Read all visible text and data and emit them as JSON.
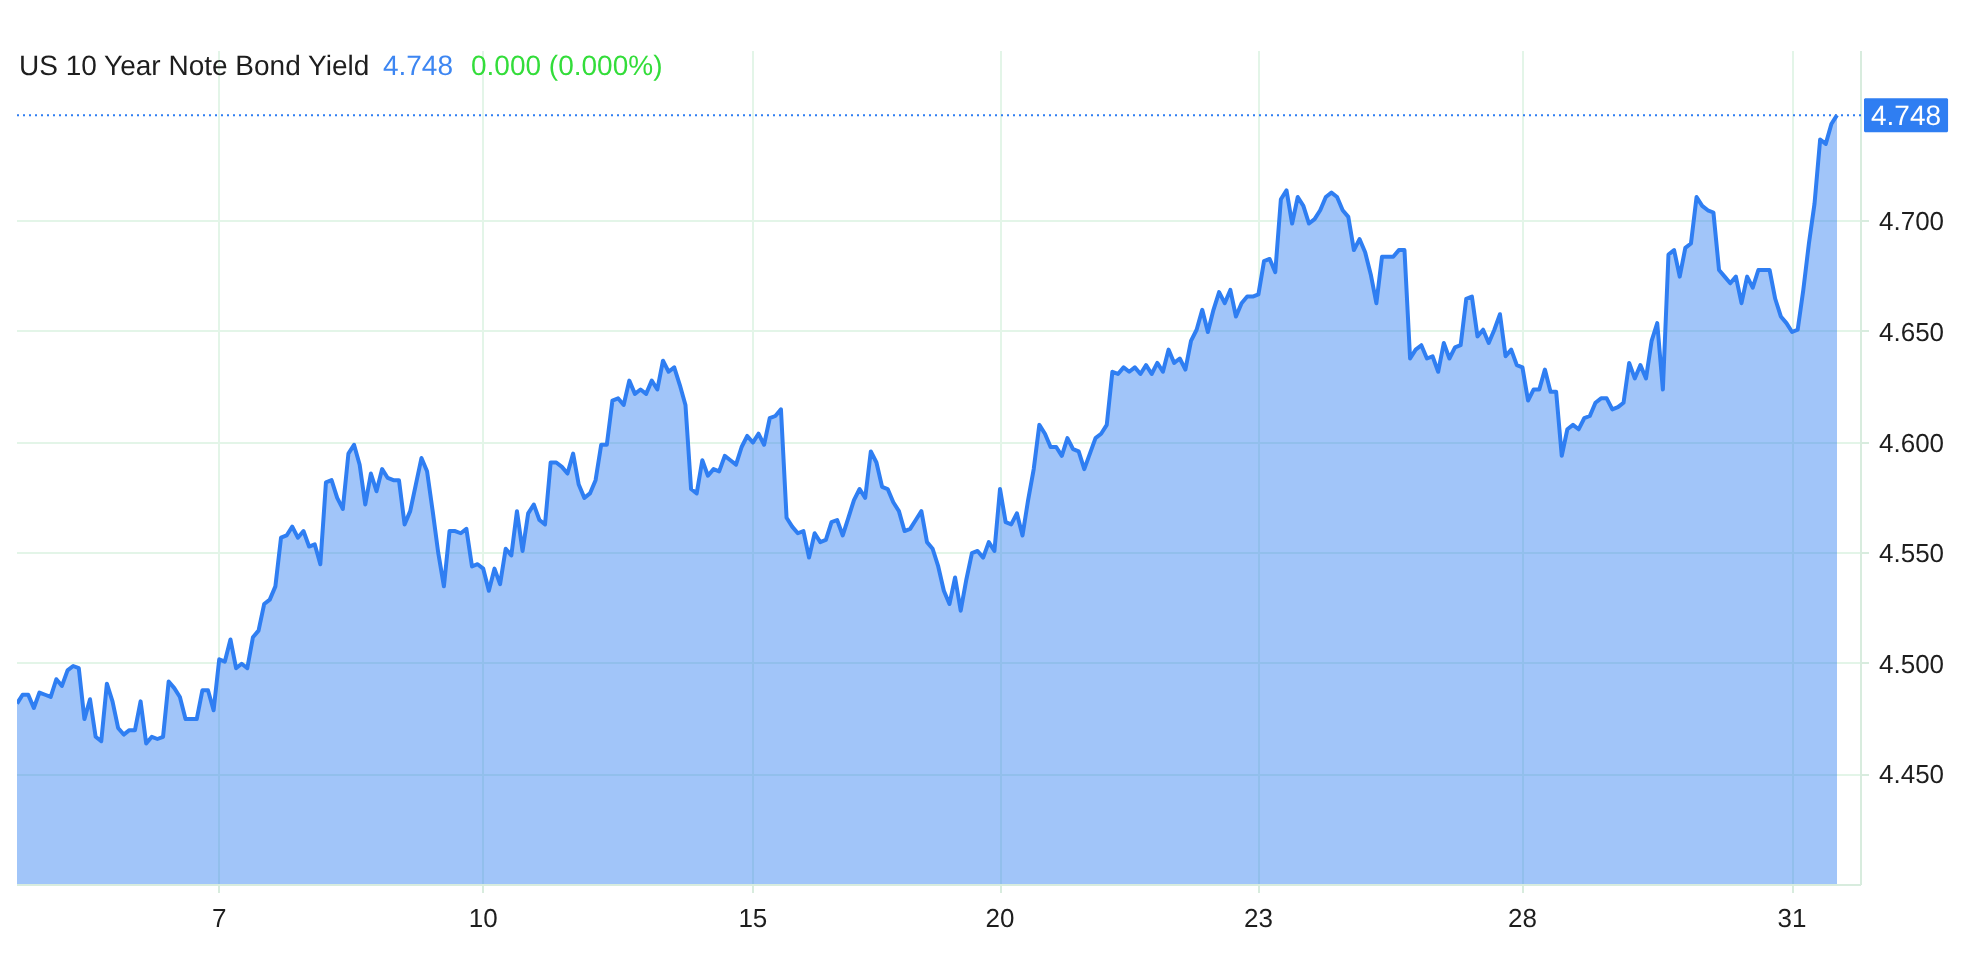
{
  "chart_data": {
    "type": "area",
    "title": "US 10 Year Note Bond Yield",
    "annotations": [
      "4.748",
      "0.000 (0.000%)"
    ],
    "ylim": [
      4.4,
      4.777
    ],
    "yticks": [
      {
        "value": 4.45,
        "label": "4.450"
      },
      {
        "value": 4.5,
        "label": "4.500"
      },
      {
        "value": 4.55,
        "label": "4.550"
      },
      {
        "value": 4.6,
        "label": "4.600"
      },
      {
        "value": 4.65,
        "label": "4.650"
      },
      {
        "value": 4.7,
        "label": "4.700"
      }
    ],
    "grid": true,
    "ref_lines": [
      {
        "axis": "y",
        "value": 4.748,
        "label": "4.748",
        "color": "#2f7ef2",
        "line_style": "dotted"
      }
    ],
    "categories": [
      null,
      null,
      null,
      null,
      null,
      null,
      null,
      null,
      null,
      null,
      null,
      null,
      null,
      null,
      null,
      null,
      null,
      null,
      null,
      null,
      null,
      null,
      null,
      null,
      null,
      null,
      null,
      null,
      null,
      null,
      null,
      null,
      null,
      null,
      null,
      null,
      "7",
      null,
      null,
      null,
      null,
      null,
      null,
      null,
      null,
      null,
      null,
      null,
      null,
      null,
      null,
      null,
      null,
      null,
      null,
      null,
      null,
      null,
      null,
      null,
      null,
      null,
      null,
      null,
      null,
      null,
      null,
      null,
      null,
      null,
      null,
      null,
      null,
      null,
      null,
      null,
      null,
      null,
      null,
      null,
      null,
      null,
      null,
      "10",
      null,
      null,
      null,
      null,
      null,
      null,
      null,
      null,
      null,
      null,
      null,
      null,
      null,
      null,
      null,
      null,
      null,
      null,
      null,
      null,
      null,
      null,
      null,
      null,
      null,
      null,
      null,
      null,
      null,
      null,
      null,
      null,
      null,
      null,
      null,
      null,
      null,
      null,
      null,
      null,
      null,
      null,
      null,
      null,
      null,
      null,
      null,
      "15",
      null,
      null,
      null,
      null,
      null,
      null,
      null,
      null,
      null,
      null,
      null,
      null,
      null,
      null,
      null,
      null,
      null,
      null,
      null,
      null,
      null,
      null,
      null,
      null,
      null,
      null,
      null,
      null,
      null,
      null,
      null,
      null,
      null,
      null,
      null,
      null,
      null,
      null,
      null,
      null,
      null,
      null,
      null,
      "20",
      null,
      null,
      null,
      null,
      null,
      null,
      null,
      null,
      null,
      null,
      null,
      null,
      null,
      null,
      null,
      null,
      null,
      null,
      null,
      null,
      null,
      null,
      null,
      null,
      null,
      null,
      null,
      null,
      null,
      null,
      null,
      null,
      null,
      null,
      null,
      null,
      null,
      null,
      null,
      null,
      null,
      null,
      null,
      null,
      null,
      "23",
      null,
      null,
      null,
      null,
      null,
      null,
      null,
      null,
      null,
      null,
      null,
      null,
      null,
      null,
      null,
      null,
      null,
      null,
      null,
      null,
      null,
      null,
      null,
      null,
      null,
      null,
      null,
      null,
      null,
      null,
      null,
      null,
      null,
      null,
      null,
      null,
      null,
      null,
      null,
      null,
      null,
      null,
      null,
      null,
      null,
      null,
      "28",
      null,
      null,
      null,
      null,
      null,
      null,
      null,
      null,
      null,
      null,
      null,
      null,
      null,
      null,
      null,
      null,
      null,
      null,
      null,
      null,
      null,
      null,
      null,
      null,
      null,
      null,
      null,
      null,
      null,
      null,
      null,
      null,
      null,
      null,
      null,
      null,
      null,
      null,
      null,
      null,
      null,
      null,
      null,
      null,
      null,
      null,
      null,
      "31",
      null,
      null,
      null,
      null,
      null,
      null,
      null,
      null
    ],
    "series": [
      {
        "color": "#2f7ef2",
        "values": [
          4.482,
          4.486,
          4.486,
          4.48,
          4.487,
          4.486,
          4.485,
          4.493,
          4.49,
          4.497,
          4.499,
          4.498,
          4.475,
          4.484,
          4.467,
          4.465,
          4.491,
          4.483,
          4.471,
          4.468,
          4.47,
          4.47,
          4.483,
          4.464,
          4.467,
          4.466,
          4.467,
          4.492,
          4.489,
          4.485,
          4.475,
          4.475,
          4.475,
          4.488,
          4.488,
          4.479,
          4.502,
          4.501,
          4.511,
          4.498,
          4.5,
          4.498,
          4.512,
          4.515,
          4.527,
          4.529,
          4.535,
          4.557,
          4.558,
          4.562,
          4.557,
          4.56,
          4.553,
          4.554,
          4.545,
          4.582,
          4.583,
          4.575,
          4.57,
          4.595,
          4.599,
          4.59,
          4.572,
          4.586,
          4.578,
          4.588,
          4.584,
          4.583,
          4.583,
          4.563,
          4.569,
          4.581,
          4.593,
          4.587,
          4.569,
          4.55,
          4.535,
          4.56,
          4.56,
          4.559,
          4.561,
          4.544,
          4.545,
          4.543,
          4.533,
          4.543,
          4.536,
          4.552,
          4.549,
          4.569,
          4.551,
          4.568,
          4.572,
          4.565,
          4.563,
          4.591,
          4.591,
          4.589,
          4.586,
          4.595,
          4.581,
          4.575,
          4.577,
          4.583,
          4.599,
          4.599,
          4.619,
          4.62,
          4.617,
          4.628,
          4.622,
          4.624,
          4.622,
          4.628,
          4.624,
          4.637,
          4.632,
          4.634,
          4.626,
          4.617,
          4.579,
          4.577,
          4.592,
          4.585,
          4.588,
          4.587,
          4.594,
          4.592,
          4.59,
          4.598,
          4.603,
          4.6,
          4.604,
          4.599,
          4.611,
          4.612,
          4.615,
          4.566,
          4.562,
          4.559,
          4.56,
          4.548,
          4.559,
          4.555,
          4.556,
          4.564,
          4.565,
          4.558,
          4.566,
          4.574,
          4.579,
          4.575,
          4.596,
          4.591,
          4.58,
          4.579,
          4.573,
          4.569,
          4.56,
          4.561,
          4.565,
          4.569,
          4.555,
          4.552,
          4.544,
          4.533,
          4.527,
          4.539,
          4.524,
          4.538,
          4.55,
          4.551,
          4.548,
          4.555,
          4.551,
          4.579,
          4.564,
          4.563,
          4.568,
          4.558,
          4.574,
          4.588,
          4.608,
          4.604,
          4.598,
          4.598,
          4.594,
          4.602,
          4.597,
          4.596,
          4.588,
          4.595,
          4.602,
          4.604,
          4.608,
          4.632,
          4.631,
          4.634,
          4.632,
          4.634,
          4.631,
          4.635,
          4.631,
          4.636,
          4.632,
          4.642,
          4.636,
          4.638,
          4.633,
          4.646,
          4.651,
          4.66,
          4.65,
          4.66,
          4.668,
          4.663,
          4.669,
          4.657,
          4.663,
          4.666,
          4.666,
          4.667,
          4.682,
          4.683,
          4.677,
          4.71,
          4.714,
          4.699,
          4.711,
          4.707,
          4.699,
          4.701,
          4.705,
          4.711,
          4.713,
          4.711,
          4.705,
          4.702,
          4.687,
          4.692,
          4.686,
          4.676,
          4.663,
          4.684,
          4.684,
          4.684,
          4.687,
          4.687,
          4.638,
          4.642,
          4.644,
          4.638,
          4.639,
          4.632,
          4.645,
          4.638,
          4.643,
          4.644,
          4.665,
          4.666,
          4.648,
          4.651,
          4.645,
          4.651,
          4.658,
          4.639,
          4.642,
          4.635,
          4.634,
          4.619,
          4.624,
          4.624,
          4.633,
          4.623,
          4.623,
          4.594,
          4.606,
          4.608,
          4.606,
          4.611,
          4.612,
          4.618,
          4.62,
          4.62,
          4.615,
          4.616,
          4.618,
          4.636,
          4.629,
          4.635,
          4.629,
          4.646,
          4.654,
          4.624,
          4.685,
          4.687,
          4.675,
          4.688,
          4.69,
          4.711,
          4.707,
          4.705,
          4.704,
          4.678,
          4.675,
          4.672,
          4.675,
          4.663,
          4.675,
          4.67,
          4.678,
          4.678,
          4.678,
          4.665,
          4.657,
          4.654,
          4.65,
          4.651,
          4.669,
          4.69,
          4.708,
          4.737,
          4.735,
          4.744,
          4.748
        ]
      }
    ]
  }
}
